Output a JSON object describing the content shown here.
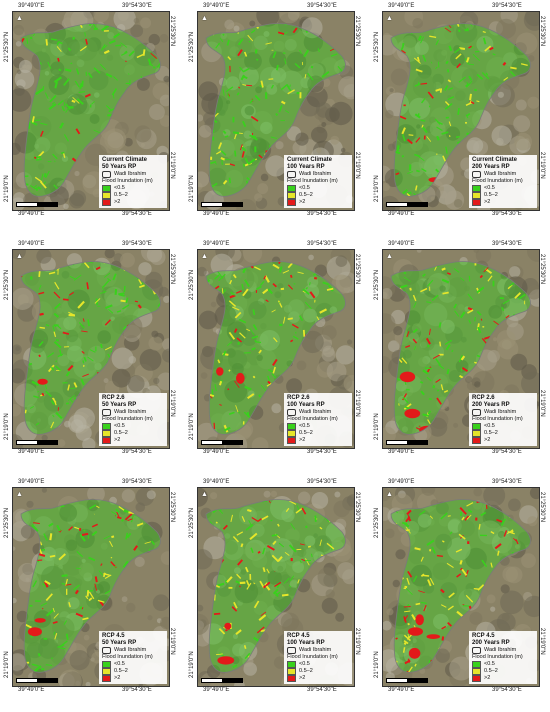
{
  "colors": {
    "low": "#39d11c",
    "mid": "#e6e62a",
    "high": "#e31a1a",
    "outline": "#7a7a7a"
  },
  "coords": {
    "lon_left": "39°49'0\"E",
    "lon_right": "39°54'30\"E",
    "lat_top": "21°25'30\"N",
    "lat_bottom": "21°19'0\"N"
  },
  "legend": {
    "boundary": "Wadi Ibrahim",
    "inundation_title": "Flood Inundation (m)",
    "classes": [
      "<0.5",
      "0.5–2",
      ">2"
    ]
  },
  "panels": [
    {
      "scenario": "Current Climate",
      "rp": "50 Years RP",
      "intensity": 0.2
    },
    {
      "scenario": "Current Climate",
      "rp": "100 Years RP",
      "intensity": 0.3
    },
    {
      "scenario": "Current Climate",
      "rp": "200 Years RP",
      "intensity": 0.35
    },
    {
      "scenario": "RCP 2.6",
      "rp": "50 Years RP",
      "intensity": 0.4
    },
    {
      "scenario": "RCP 2.6",
      "rp": "100 Years RP",
      "intensity": 0.5
    },
    {
      "scenario": "RCP 2.6",
      "rp": "200 Years RP",
      "intensity": 0.55
    },
    {
      "scenario": "RCP 4.5",
      "rp": "50 Years RP",
      "intensity": 0.55
    },
    {
      "scenario": "RCP 4.5",
      "rp": "100 Years RP",
      "intensity": 0.65
    },
    {
      "scenario": "RCP 4.5",
      "rp": "200 Years RP",
      "intensity": 0.8
    }
  ]
}
